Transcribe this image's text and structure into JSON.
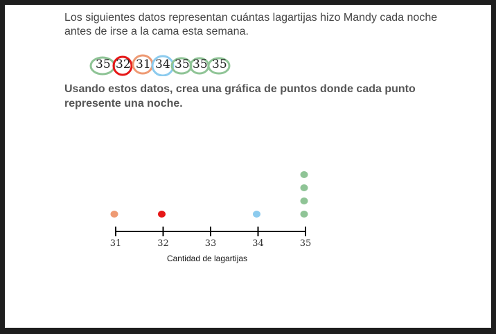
{
  "intro_text": "Los siguientes datos representan cuántas lagartijas hizo Mandy cada noche antes de irse a la cama esta semana.",
  "data_values": [
    "35",
    "32",
    "31",
    "34",
    "35",
    "35",
    "35"
  ],
  "instruction_text": "Usando estos datos, crea una gráfica de puntos donde cada punto represente una noche.",
  "colors": {
    "green": "#8fc496",
    "red": "#e61717",
    "orange": "#ee9a73",
    "blue": "#8ccbee"
  },
  "chart_data": {
    "type": "scatter",
    "title": "",
    "xlabel": "Cantidad de lagartijas",
    "ylabel": "",
    "x_ticks": [
      "31",
      "32",
      "33",
      "34",
      "35"
    ],
    "xlim": [
      31,
      35
    ],
    "grid": false,
    "points": [
      {
        "x": 31,
        "count": 1,
        "color": "#ee9a73"
      },
      {
        "x": 32,
        "count": 1,
        "color": "#e61717"
      },
      {
        "x": 34,
        "count": 1,
        "color": "#8ccbee"
      },
      {
        "x": 35,
        "count": 4,
        "color": "#8fc496"
      }
    ]
  }
}
